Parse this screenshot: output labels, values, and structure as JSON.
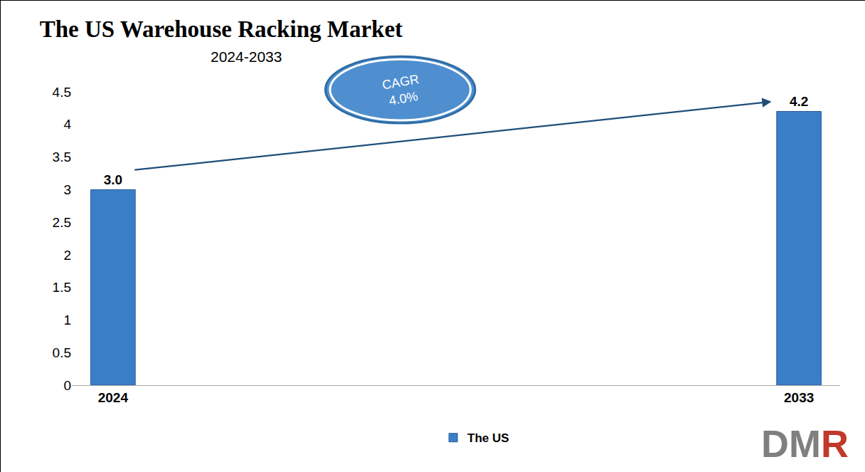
{
  "chart_data": {
    "type": "bar",
    "title": "The US Warehouse Racking Market",
    "subtitle": "2024-2033",
    "categories": [
      "2024",
      "2033"
    ],
    "series": [
      {
        "name": "The US",
        "color": "#3a7ec8",
        "values": [
          3.0,
          4.2
        ],
        "value_labels": [
          "3.0",
          "4.2"
        ]
      }
    ],
    "ylim": [
      0,
      4.5
    ],
    "yticks": [
      0,
      0.5,
      1,
      1.5,
      2,
      2.5,
      3,
      3.5,
      4,
      4.5
    ],
    "grid": false,
    "data_labels": true,
    "legend": "bottom",
    "annotations": [
      [
        "CAGR",
        "4.0%"
      ]
    ],
    "logo": "DMR"
  }
}
